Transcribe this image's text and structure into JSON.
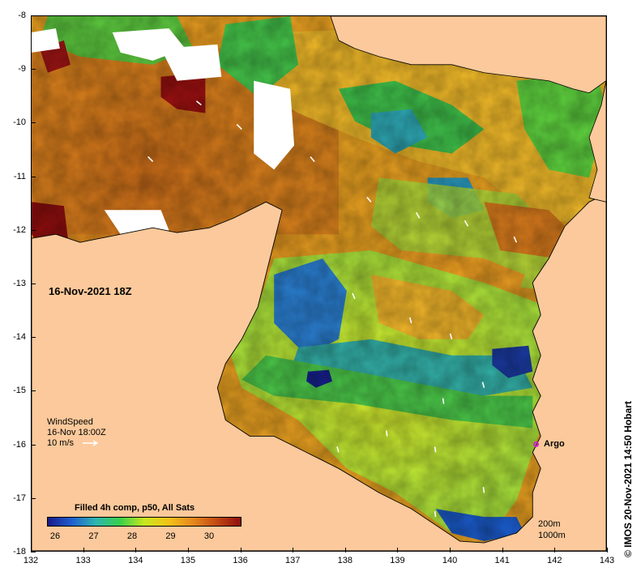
{
  "map": {
    "date_label": "16-Nov-2021 18Z",
    "x_ticks": [
      "132",
      "133",
      "134",
      "135",
      "136",
      "137",
      "138",
      "139",
      "140",
      "141",
      "142",
      "143"
    ],
    "y_ticks": [
      "-8",
      "-9",
      "-10",
      "-11",
      "-12",
      "-13",
      "-14",
      "-15",
      "-16",
      "-17",
      "-18"
    ],
    "land_color": "#fbc99b",
    "wind": {
      "title": "WindSpeed",
      "time": "16-Nov 18:00Z",
      "scale": "10 m/s"
    },
    "argo_label": "Argo",
    "argo_color": "#d020d0",
    "legend": {
      "title": "Filled 4h comp, p50, All Sats",
      "labels": [
        "26",
        "27",
        "28",
        "29",
        "30"
      ],
      "colors": [
        "#1a1a8a",
        "#1f5fd0",
        "#2fb6b0",
        "#39d04a",
        "#c7e81f",
        "#f4c218",
        "#e5891e",
        "#c24a12",
        "#8e0e0e"
      ]
    },
    "depth": {
      "line1": "200m",
      "line2": "1000m"
    },
    "credit": "© IMOS 20-Nov-2021 14:50 Hobart"
  }
}
